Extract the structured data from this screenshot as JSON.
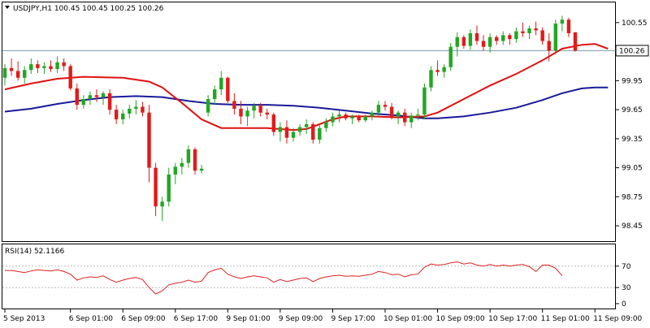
{
  "chart_data": [
    {
      "type": "candlestick",
      "title": "USDJPY,H1  100.45 100.45 100.25 100.26",
      "ylim": [
        98.3,
        100.75
      ],
      "yticks": [
        "100.55",
        "99.95",
        "99.65",
        "99.35",
        "99.05",
        "98.75",
        "98.45"
      ],
      "ytick_values": [
        100.55,
        99.95,
        99.65,
        99.35,
        99.05,
        98.75,
        98.45
      ],
      "current_price": 100.26,
      "current_price_label": "100.26",
      "candles": [
        [
          99.98,
          100.12,
          99.9,
          100.08
        ],
        [
          100.08,
          100.18,
          100.0,
          100.05
        ],
        [
          100.05,
          100.15,
          99.95,
          99.98
        ],
        [
          99.98,
          100.1,
          99.92,
          100.06
        ],
        [
          100.06,
          100.18,
          100.02,
          100.12
        ],
        [
          100.12,
          100.16,
          100.03,
          100.08
        ],
        [
          100.08,
          100.14,
          100.02,
          100.1
        ],
        [
          100.1,
          100.16,
          100.04,
          100.07
        ],
        [
          100.07,
          100.2,
          100.03,
          100.14
        ],
        [
          100.14,
          100.18,
          100.05,
          100.1
        ],
        [
          100.1,
          100.12,
          99.85,
          99.87
        ],
        [
          99.87,
          99.92,
          99.65,
          99.7
        ],
        [
          99.7,
          99.8,
          99.66,
          99.76
        ],
        [
          99.76,
          99.84,
          99.7,
          99.8
        ],
        [
          99.8,
          99.86,
          99.73,
          99.78
        ],
        [
          99.78,
          99.84,
          99.7,
          99.82
        ],
        [
          99.82,
          99.86,
          99.6,
          99.65
        ],
        [
          99.65,
          99.7,
          99.5,
          99.55
        ],
        [
          99.55,
          99.65,
          99.5,
          99.61
        ],
        [
          99.61,
          99.7,
          99.56,
          99.66
        ],
        [
          99.66,
          99.75,
          99.6,
          99.68
        ],
        [
          99.68,
          99.73,
          99.58,
          99.62
        ],
        [
          99.62,
          99.7,
          98.9,
          99.05
        ],
        [
          99.05,
          99.1,
          98.55,
          98.65
        ],
        [
          98.65,
          98.75,
          98.5,
          98.7
        ],
        [
          98.7,
          99.05,
          98.65,
          98.98
        ],
        [
          98.98,
          99.1,
          98.88,
          99.06
        ],
        [
          99.06,
          99.15,
          98.98,
          99.1
        ],
        [
          99.1,
          99.28,
          99.05,
          99.24
        ],
        [
          99.24,
          99.26,
          98.98,
          99.02
        ],
        [
          99.02,
          99.08,
          98.99,
          99.04
        ],
        [
          99.62,
          99.8,
          99.58,
          99.76
        ],
        [
          99.76,
          99.9,
          99.7,
          99.86
        ],
        [
          99.86,
          100.05,
          99.8,
          99.98
        ],
        [
          99.98,
          99.99,
          99.72,
          99.74
        ],
        [
          99.74,
          99.82,
          99.6,
          99.66
        ],
        [
          99.66,
          99.74,
          99.5,
          99.58
        ],
        [
          99.58,
          99.68,
          99.48,
          99.64
        ],
        [
          99.64,
          99.72,
          99.56,
          99.69
        ],
        [
          99.69,
          99.72,
          99.58,
          99.62
        ],
        [
          99.62,
          99.66,
          99.55,
          99.6
        ],
        [
          99.6,
          99.62,
          99.38,
          99.42
        ],
        [
          99.42,
          99.52,
          99.32,
          99.47
        ],
        [
          99.47,
          99.54,
          99.3,
          99.36
        ],
        [
          99.36,
          99.46,
          99.32,
          99.42
        ],
        [
          99.42,
          99.5,
          99.38,
          99.47
        ],
        [
          99.47,
          99.55,
          99.4,
          99.5
        ],
        [
          99.5,
          99.52,
          99.3,
          99.34
        ],
        [
          99.34,
          99.5,
          99.3,
          99.46
        ],
        [
          99.46,
          99.56,
          99.42,
          99.52
        ],
        [
          99.52,
          99.62,
          99.48,
          99.58
        ],
        [
          99.58,
          99.64,
          99.52,
          99.6
        ],
        [
          99.6,
          99.62,
          99.54,
          99.56
        ],
        [
          99.56,
          99.6,
          99.5,
          99.58
        ],
        [
          99.58,
          99.6,
          99.52,
          99.54
        ],
        [
          99.54,
          99.6,
          99.52,
          99.58
        ],
        [
          99.58,
          99.64,
          99.54,
          99.62
        ],
        [
          99.62,
          99.74,
          99.58,
          99.7
        ],
        [
          99.7,
          99.74,
          99.64,
          99.68
        ],
        [
          99.68,
          99.72,
          99.55,
          99.58
        ],
        [
          99.58,
          99.64,
          99.5,
          99.62
        ],
        [
          99.62,
          99.66,
          99.48,
          99.52
        ],
        [
          99.52,
          99.62,
          99.46,
          99.59
        ],
        [
          99.59,
          99.66,
          99.54,
          99.6
        ],
        [
          99.6,
          99.92,
          99.55,
          99.88
        ],
        [
          99.88,
          100.1,
          99.84,
          100.06
        ],
        [
          100.06,
          100.16,
          100.0,
          100.04
        ],
        [
          100.04,
          100.12,
          99.98,
          100.09
        ],
        [
          100.09,
          100.34,
          100.05,
          100.3
        ],
        [
          100.3,
          100.45,
          100.2,
          100.4
        ],
        [
          100.4,
          100.42,
          100.28,
          100.31
        ],
        [
          100.31,
          100.48,
          100.27,
          100.44
        ],
        [
          100.44,
          100.52,
          100.32,
          100.36
        ],
        [
          100.36,
          100.42,
          100.26,
          100.3
        ],
        [
          100.3,
          100.44,
          100.24,
          100.4
        ],
        [
          100.4,
          100.42,
          100.32,
          100.36
        ],
        [
          100.36,
          100.46,
          100.32,
          100.42
        ],
        [
          100.42,
          100.44,
          100.32,
          100.38
        ],
        [
          100.38,
          100.5,
          100.34,
          100.46
        ],
        [
          100.46,
          100.55,
          100.4,
          100.44
        ],
        [
          100.44,
          100.52,
          100.38,
          100.49
        ],
        [
          100.49,
          100.56,
          100.42,
          100.47
        ],
        [
          100.47,
          100.5,
          100.32,
          100.36
        ],
        [
          100.36,
          100.44,
          100.15,
          100.26
        ],
        [
          100.26,
          100.58,
          100.22,
          100.54
        ],
        [
          100.54,
          100.62,
          100.46,
          100.58
        ],
        [
          100.58,
          100.6,
          100.4,
          100.44
        ],
        [
          100.45,
          100.45,
          100.25,
          100.26
        ]
      ],
      "ma_fast": [
        [
          0,
          99.86
        ],
        [
          4,
          99.92
        ],
        [
          8,
          99.97
        ],
        [
          12,
          99.99
        ],
        [
          18,
          99.98
        ],
        [
          22,
          99.94
        ],
        [
          24,
          99.88
        ],
        [
          27,
          99.72
        ],
        [
          30,
          99.55
        ],
        [
          33,
          99.46
        ],
        [
          36,
          99.46
        ],
        [
          40,
          99.46
        ],
        [
          44,
          99.44
        ],
        [
          46,
          99.45
        ],
        [
          48,
          99.5
        ],
        [
          50,
          99.55
        ],
        [
          52,
          99.58
        ],
        [
          56,
          99.58
        ],
        [
          60,
          99.57
        ],
        [
          64,
          99.58
        ],
        [
          66,
          99.62
        ],
        [
          70,
          99.76
        ],
        [
          74,
          99.9
        ],
        [
          78,
          100.02
        ],
        [
          82,
          100.16
        ],
        [
          85,
          100.28
        ],
        [
          88,
          100.32
        ],
        [
          90,
          100.33
        ],
        [
          92,
          100.28
        ]
      ],
      "ma_slow": [
        [
          0,
          99.63
        ],
        [
          4,
          99.66
        ],
        [
          8,
          99.71
        ],
        [
          12,
          99.75
        ],
        [
          16,
          99.78
        ],
        [
          20,
          99.79
        ],
        [
          24,
          99.78
        ],
        [
          28,
          99.74
        ],
        [
          32,
          99.71
        ],
        [
          36,
          99.7
        ],
        [
          40,
          99.7
        ],
        [
          44,
          99.69
        ],
        [
          48,
          99.67
        ],
        [
          52,
          99.64
        ],
        [
          56,
          99.61
        ],
        [
          60,
          99.59
        ],
        [
          64,
          99.56
        ],
        [
          66,
          99.56
        ],
        [
          70,
          99.58
        ],
        [
          74,
          99.62
        ],
        [
          78,
          99.67
        ],
        [
          82,
          99.75
        ],
        [
          85,
          99.82
        ],
        [
          88,
          99.87
        ],
        [
          90,
          99.88
        ],
        [
          92,
          99.88
        ]
      ],
      "colors": {
        "bull": "#22a722",
        "bear": "#e01b1b",
        "ma_fast": "#e01010",
        "ma_slow": "#1a1a9a"
      }
    },
    {
      "type": "line",
      "title": "RSI(14) 52.1166",
      "ylim": [
        0,
        100
      ],
      "yticks": [
        "70",
        "30",
        "0"
      ],
      "ytick_values": [
        70,
        30,
        0
      ],
      "levels": [
        70,
        30
      ],
      "series": [
        {
          "values": [
            62,
            62,
            60,
            58,
            61,
            63,
            62,
            61,
            63,
            60,
            55,
            44,
            48,
            50,
            49,
            52,
            45,
            40,
            44,
            47,
            49,
            45,
            30,
            18,
            24,
            35,
            38,
            40,
            44,
            40,
            42,
            58,
            63,
            66,
            55,
            50,
            47,
            50,
            52,
            50,
            48,
            40,
            45,
            41,
            44,
            47,
            48,
            41,
            47,
            50,
            52,
            53,
            51,
            52,
            51,
            53,
            55,
            60,
            58,
            54,
            55,
            50,
            54,
            55,
            68,
            74,
            72,
            73,
            76,
            78,
            74,
            76,
            72,
            70,
            73,
            70,
            72,
            70,
            72,
            73,
            69,
            60,
            72,
            72,
            66,
            52
          ]
        }
      ],
      "colors": {
        "line": "#dd2222",
        "level": "#bbbbbb"
      }
    }
  ],
  "x_ticks": [
    {
      "label": "5 Sep 2013",
      "index": 0
    },
    {
      "label": "6 Sep 01:00",
      "index": 10
    },
    {
      "label": "6 Sep 09:00",
      "index": 18
    },
    {
      "label": "6 Sep 17:00",
      "index": 26
    },
    {
      "label": "9 Sep 01:00",
      "index": 34
    },
    {
      "label": "9 Sep 09:00",
      "index": 42
    },
    {
      "label": "9 Sep 17:00",
      "index": 50
    },
    {
      "label": "10 Sep 01:00",
      "index": 58
    },
    {
      "label": "10 Sep 09:00",
      "index": 66
    },
    {
      "label": "10 Sep 17:00",
      "index": 74
    },
    {
      "label": "11 Sep 01:00",
      "index": 82
    },
    {
      "label": "11 Sep 09:00",
      "index": 90
    }
  ]
}
